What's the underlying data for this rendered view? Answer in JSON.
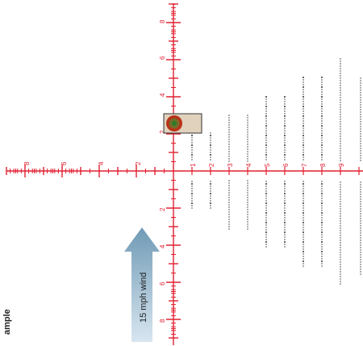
{
  "colors": {
    "reticle": "#e02030",
    "dots": "#333333",
    "target_box_fill": "#e0d2bd",
    "target_box_stroke": "#333333",
    "target_outer": "#b8321a",
    "target_inner": "#7a6a2a",
    "target_center": "#2f7a2a",
    "arrow_light": "#d8e6f0",
    "arrow_dark": "#6f9ab5",
    "background": "#ffffff"
  },
  "reticle": {
    "vertical_up_labels": [
      "2",
      "4",
      "6",
      "8"
    ],
    "vertical_down_labels": [
      "2",
      "4",
      "6",
      "8"
    ],
    "horizontal_left_labels": [
      "2",
      "4",
      "6",
      "8"
    ],
    "horizontal_right_labels": [
      "1",
      "2",
      "3",
      "4",
      "5",
      "6",
      "7",
      "8",
      "9"
    ]
  },
  "wind": {
    "label": "15 mph wind",
    "direction": "up",
    "icon": "arrow-up-icon"
  },
  "cutoff_label": "ample",
  "target": {
    "icon": "bullseye-target-icon"
  }
}
